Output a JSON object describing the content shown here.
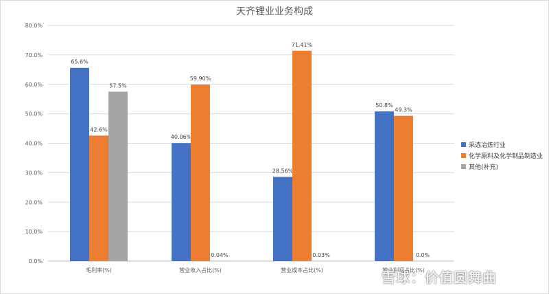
{
  "chart_data": {
    "type": "bar",
    "title": "天齐锂业业务构成",
    "categories": [
      "毛利率(%)",
      "营业收入占比(%)",
      "营业成本占比(%)",
      "营业利润占比(%)"
    ],
    "series": [
      {
        "name": "采选冶炼行业",
        "color": "#4472c4",
        "values": [
          65.6,
          40.06,
          28.56,
          50.8
        ],
        "labels": [
          "65.6%",
          "40.06%",
          "28.56%",
          "50.8%"
        ]
      },
      {
        "name": "化学原料及化学制品制造业",
        "color": "#ed7d31",
        "values": [
          42.6,
          59.9,
          71.41,
          49.3
        ],
        "labels": [
          "42.6%",
          "59.90%",
          "71.41%",
          "49.3%"
        ]
      },
      {
        "name": "其他(补充)",
        "color": "#a5a5a5",
        "values": [
          57.5,
          0.04,
          0.03,
          0.0
        ],
        "labels": [
          "57.5%",
          "0.04%",
          "0.03%",
          "0.0%"
        ]
      }
    ],
    "y_ticks": [
      "0.0%",
      "10.0%",
      "20.0%",
      "30.0%",
      "40.0%",
      "50.0%",
      "60.0%",
      "70.0%",
      "80.0%"
    ],
    "ylim": [
      0,
      80
    ],
    "grid": true,
    "legend_position": "right"
  },
  "watermark": "雪球：价值圆舞曲"
}
